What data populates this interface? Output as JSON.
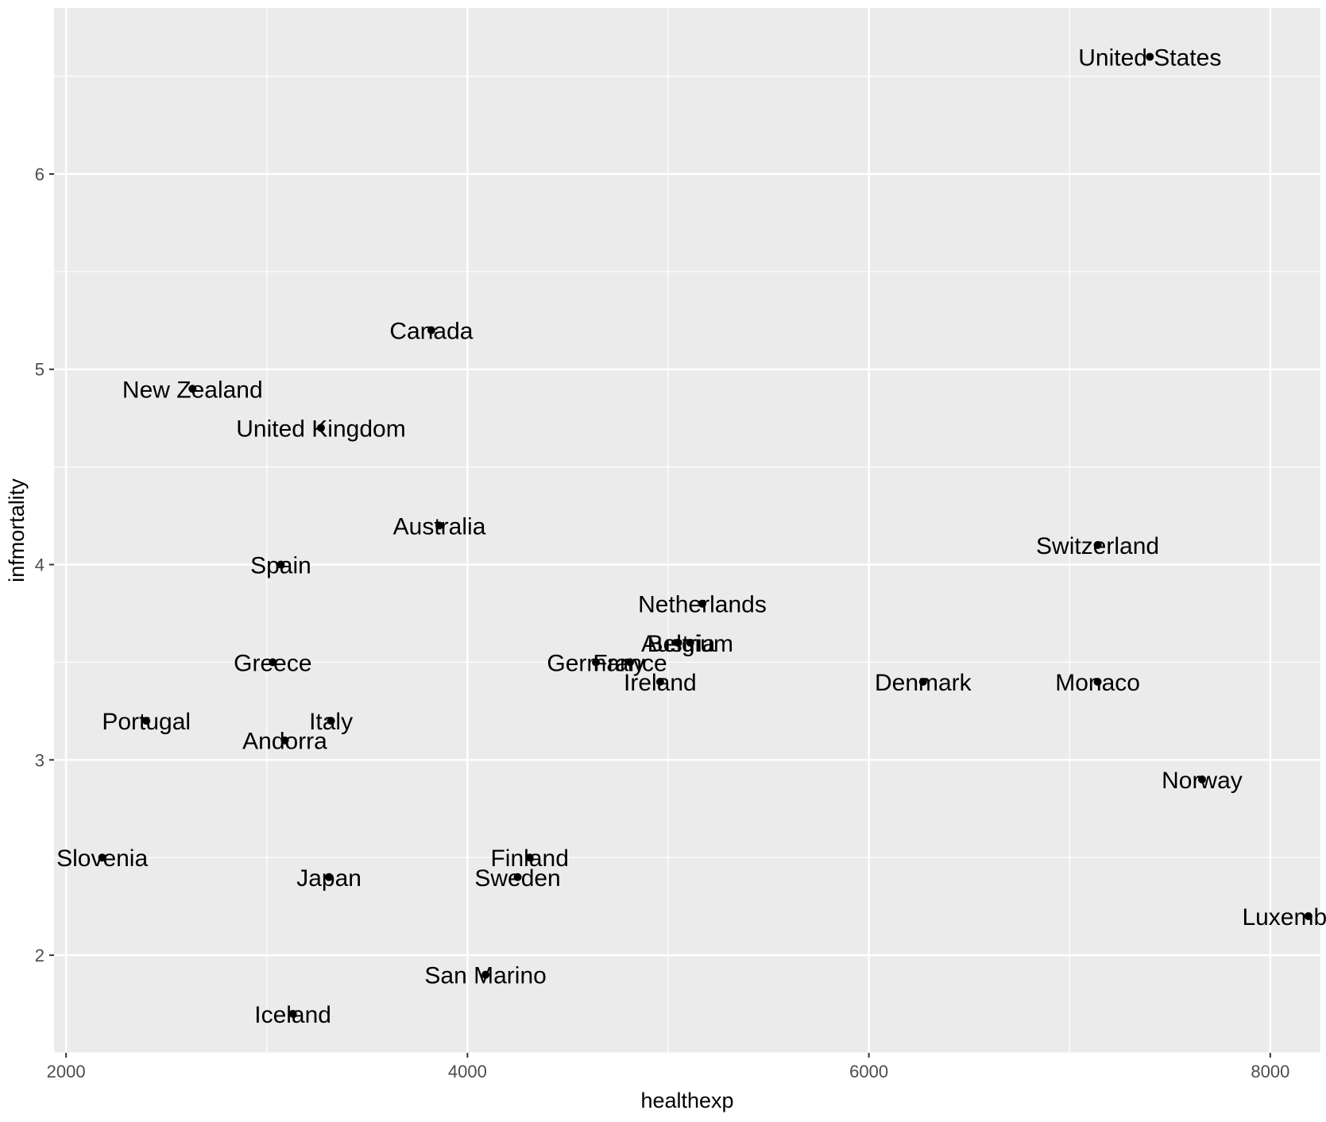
{
  "chart_data": {
    "type": "scatter",
    "title": "",
    "xlabel": "healthexp",
    "ylabel": "infmortality",
    "xlim": [
      1940,
      8250
    ],
    "ylim": [
      1.5,
      6.85
    ],
    "x_ticks": [
      2000,
      4000,
      6000,
      8000
    ],
    "x_tick_labels": [
      "2000",
      "4000",
      "6000",
      "8000"
    ],
    "y_ticks": [
      2,
      3,
      4,
      5,
      6
    ],
    "y_tick_labels": [
      "2",
      "3",
      "4",
      "5",
      "6"
    ],
    "grid": true,
    "legend": "none",
    "colors": {
      "panel": "#EBEBEB",
      "grid": "#FFFFFF",
      "point": "#000000",
      "tick_text": "#4D4D4D",
      "tick_mark": "#333333"
    },
    "points": [
      {
        "label": "United States",
        "x": 7400,
        "y": 6.6
      },
      {
        "label": "Canada",
        "x": 3820,
        "y": 5.2
      },
      {
        "label": "New Zealand",
        "x": 2630,
        "y": 4.9
      },
      {
        "label": "United Kingdom",
        "x": 3270,
        "y": 4.7
      },
      {
        "label": "Australia",
        "x": 3860,
        "y": 4.2
      },
      {
        "label": "Switzerland",
        "x": 7140,
        "y": 4.1
      },
      {
        "label": "Spain",
        "x": 3070,
        "y": 4.0
      },
      {
        "label": "Netherlands",
        "x": 5170,
        "y": 3.8
      },
      {
        "label": "Austria",
        "x": 5050,
        "y": 3.6
      },
      {
        "label": "Belgium",
        "x": 5110,
        "y": 3.6
      },
      {
        "label": "Greece",
        "x": 3030,
        "y": 3.5
      },
      {
        "label": "Germany",
        "x": 4640,
        "y": 3.5
      },
      {
        "label": "France",
        "x": 4810,
        "y": 3.5
      },
      {
        "label": "Ireland",
        "x": 4960,
        "y": 3.4
      },
      {
        "label": "Denmark",
        "x": 6270,
        "y": 3.4
      },
      {
        "label": "Monaco",
        "x": 7140,
        "y": 3.4
      },
      {
        "label": "Portugal",
        "x": 2400,
        "y": 3.2
      },
      {
        "label": "Italy",
        "x": 3320,
        "y": 3.2
      },
      {
        "label": "Andorra",
        "x": 3090,
        "y": 3.1
      },
      {
        "label": "Norway",
        "x": 7660,
        "y": 2.9
      },
      {
        "label": "Slovenia",
        "x": 2180,
        "y": 2.5
      },
      {
        "label": "Finland",
        "x": 4310,
        "y": 2.5
      },
      {
        "label": "Japan",
        "x": 3310,
        "y": 2.4
      },
      {
        "label": "Sweden",
        "x": 4250,
        "y": 2.4
      },
      {
        "label": "Luxembourg",
        "x": 8190,
        "y": 2.2
      },
      {
        "label": "San Marino",
        "x": 4090,
        "y": 1.9
      },
      {
        "label": "Iceland",
        "x": 3130,
        "y": 1.7
      }
    ]
  }
}
